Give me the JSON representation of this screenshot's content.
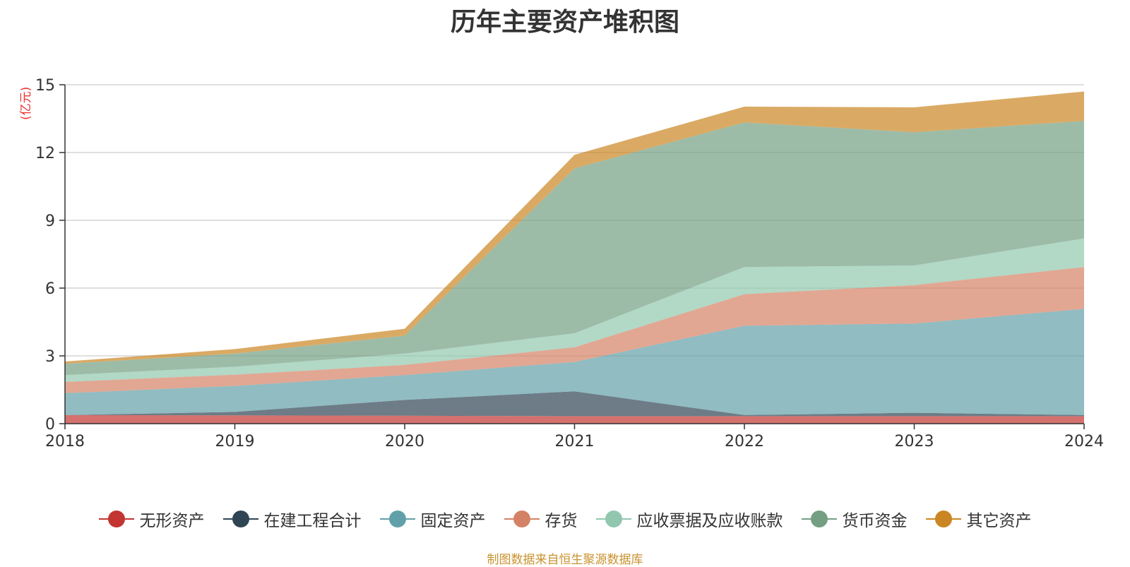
{
  "chart_data": {
    "type": "area",
    "stacked": true,
    "title": "历年主要资产堆积图",
    "unit_label": "(亿元)",
    "source_note": "制图数据来自恒生聚源数据库",
    "x": [
      "2018",
      "2019",
      "2020",
      "2021",
      "2022",
      "2023",
      "2024"
    ],
    "ylim": [
      0,
      15
    ],
    "yticks": [
      0,
      3,
      6,
      9,
      12,
      15
    ],
    "grid": true,
    "legend_position": "bottom",
    "series": [
      {
        "name": "无形资产",
        "color": "#c23531",
        "values": [
          0.38,
          0.37,
          0.35,
          0.33,
          0.33,
          0.33,
          0.33
        ]
      },
      {
        "name": "在建工程合计",
        "color": "#2f4554",
        "values": [
          0.0,
          0.15,
          0.7,
          1.1,
          0.05,
          0.15,
          0.05
        ]
      },
      {
        "name": "固定资产",
        "color": "#61a0a8",
        "values": [
          0.97,
          1.15,
          1.1,
          1.3,
          3.95,
          3.95,
          4.7
        ]
      },
      {
        "name": "存货",
        "color": "#d48265",
        "values": [
          0.5,
          0.5,
          0.45,
          0.65,
          1.4,
          1.7,
          1.85
        ]
      },
      {
        "name": "应收票据及应收账款",
        "color": "#91c7ae",
        "values": [
          0.3,
          0.35,
          0.5,
          0.62,
          1.2,
          0.87,
          1.27
        ]
      },
      {
        "name": "货币资金",
        "color": "#749f83",
        "values": [
          0.5,
          0.58,
          0.8,
          7.3,
          6.4,
          5.9,
          5.2
        ]
      },
      {
        "name": "其它资产",
        "color": "#ca8622",
        "values": [
          0.1,
          0.2,
          0.3,
          0.6,
          0.7,
          1.1,
          1.3
        ]
      }
    ]
  }
}
